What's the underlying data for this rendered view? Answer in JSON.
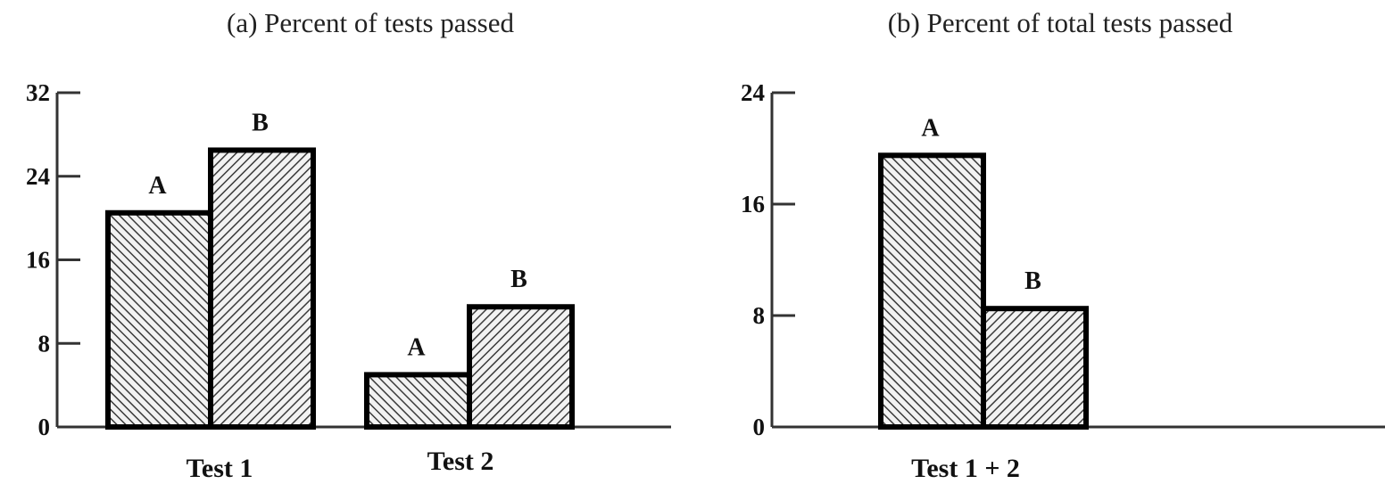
{
  "chart_data": [
    {
      "type": "bar",
      "title": "(a) Percent of tests passed",
      "categories": [
        "Test 1",
        "Test 2"
      ],
      "series": [
        {
          "name": "A",
          "values": [
            20.5,
            5
          ]
        },
        {
          "name": "B",
          "values": [
            26.5,
            11.5
          ]
        }
      ],
      "bar_labels": [
        "A",
        "B"
      ],
      "ylim": [
        0,
        32
      ],
      "yticks": [
        0,
        8,
        16,
        24,
        32
      ],
      "xlabel": "",
      "ylabel": "",
      "grid": false,
      "pattern": {
        "A": "backslash-hatch",
        "B": "slash-hatch"
      }
    },
    {
      "type": "bar",
      "title": "(b) Percent of total tests passed",
      "categories": [
        "Test 1 + 2"
      ],
      "series": [
        {
          "name": "A",
          "values": [
            19.5
          ]
        },
        {
          "name": "B",
          "values": [
            8.5
          ]
        }
      ],
      "bar_labels": [
        "A",
        "B"
      ],
      "ylim": [
        0,
        24
      ],
      "yticks": [
        0,
        8,
        16,
        24
      ],
      "xlabel": "",
      "ylabel": "",
      "grid": false,
      "pattern": {
        "A": "backslash-hatch",
        "B": "slash-hatch"
      }
    }
  ]
}
